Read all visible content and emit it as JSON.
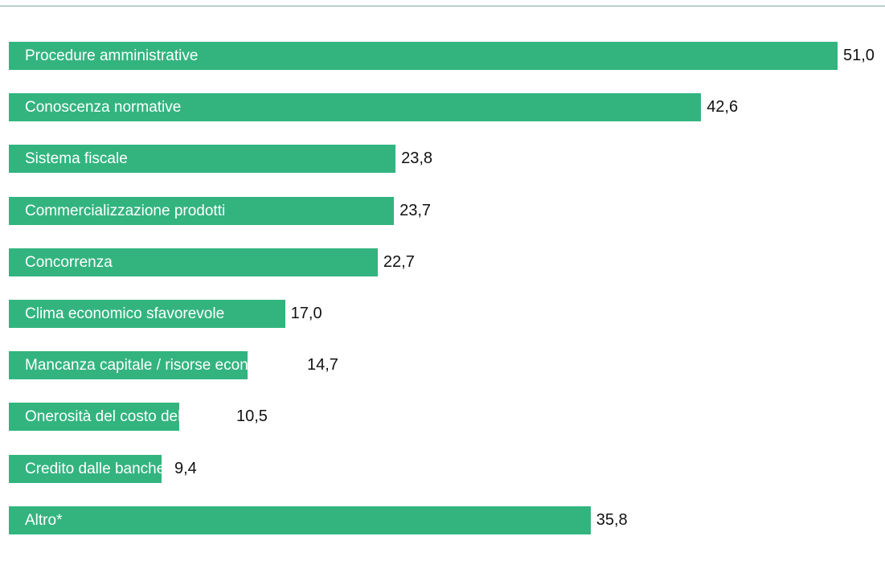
{
  "chart_data": {
    "type": "bar",
    "orientation": "horizontal",
    "categories": [
      "Procedure amministrative",
      "Conoscenza normative",
      "Sistema fiscale",
      "Commercializzazione prodotti",
      "Concorrenza",
      "Clima economico sfavorevole",
      "Mancanza capitale / risorse economiche",
      "Onerosità del costo del lavoro",
      "Credito dalle banche",
      "Altro*"
    ],
    "values": [
      51.0,
      42.6,
      23.8,
      23.7,
      22.7,
      17.0,
      14.7,
      10.5,
      9.4,
      35.8
    ],
    "value_labels": [
      "51,0",
      "42,6",
      "23,8",
      "23,7",
      "22,7",
      "17,0",
      "14,7",
      "10,5",
      "9,4",
      "35,8"
    ],
    "xlim": [
      0,
      51
    ],
    "grid": false,
    "legend": "none",
    "colors": {
      "bar": "#33b47f",
      "rule": "#7fa89a"
    }
  }
}
